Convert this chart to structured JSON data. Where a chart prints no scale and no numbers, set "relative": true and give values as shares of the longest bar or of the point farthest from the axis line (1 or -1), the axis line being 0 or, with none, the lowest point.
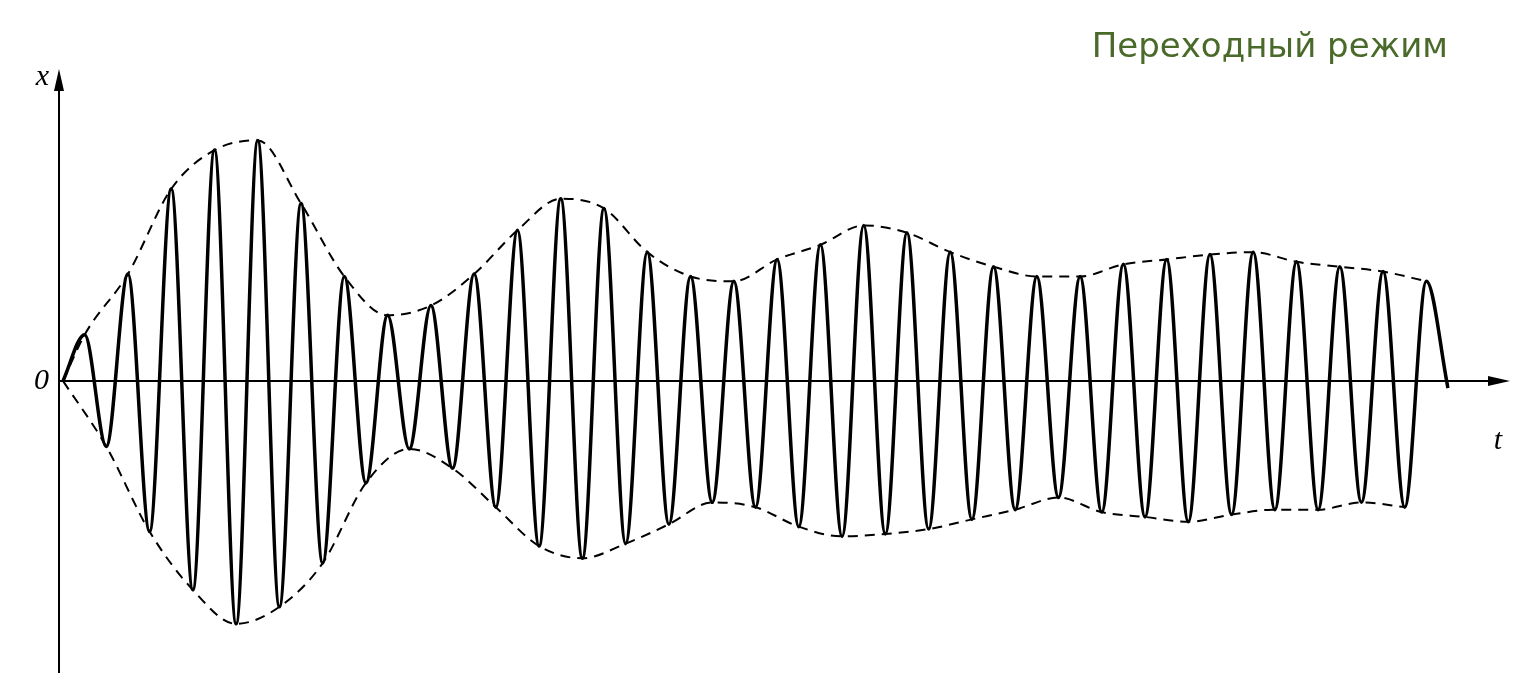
{
  "chart_data": {
    "type": "line",
    "title": "Переходный режим",
    "xlabel": "t",
    "ylabel": "x",
    "annotations": [
      "0"
    ],
    "relative": true,
    "legend": false,
    "grid": false,
    "marker": "none",
    "categories": [
      null,
      null,
      null,
      null,
      null,
      null,
      null,
      null,
      null,
      null,
      null,
      null,
      null,
      null,
      null,
      null,
      null,
      null,
      null,
      null,
      null,
      null,
      null,
      null,
      null,
      null,
      null,
      null,
      null,
      null,
      null,
      null,
      null,
      null,
      null,
      null,
      null,
      null,
      null,
      null,
      null,
      null,
      null,
      null,
      null,
      null,
      null,
      null,
      null,
      null,
      null,
      null,
      null,
      null,
      null,
      null,
      null,
      null,
      null,
      null,
      null,
      null,
      null,
      null,
      null
    ],
    "series": [
      {
        "color": "#000000",
        "line_style": "solid",
        "values": [
          0,
          0.19,
          -0.27,
          0.44,
          -0.62,
          0.79,
          -0.86,
          0.95,
          -1.0,
          0.99,
          -0.93,
          0.73,
          -0.75,
          0.43,
          -0.42,
          0.27,
          -0.28,
          0.31,
          -0.36,
          0.44,
          -0.52,
          0.62,
          -0.68,
          0.75,
          -0.73,
          0.71,
          -0.67,
          0.53,
          -0.59,
          0.43,
          -0.5,
          0.41,
          -0.52,
          0.5,
          -0.6,
          0.56,
          -0.64,
          0.64,
          -0.63,
          0.61,
          -0.61,
          0.53,
          -0.57,
          0.47,
          -0.53,
          0.43,
          -0.48,
          0.43,
          -0.54,
          0.48,
          -0.56,
          0.5,
          -0.58,
          0.52,
          -0.55,
          0.53,
          -0.53,
          0.49,
          -0.53,
          0.47,
          -0.5,
          0.45,
          -0.52,
          0.41,
          -0.03
        ]
      },
      {
        "color": "#000000",
        "line_style": "dashed",
        "values": [
          0,
          0.19,
          null,
          0.44,
          null,
          0.79,
          null,
          0.95,
          null,
          0.99,
          null,
          0.73,
          null,
          0.43,
          null,
          0.27,
          null,
          0.31,
          null,
          0.44,
          null,
          0.62,
          null,
          0.75,
          null,
          0.71,
          null,
          0.53,
          null,
          0.43,
          null,
          0.41,
          null,
          0.5,
          null,
          0.56,
          null,
          0.64,
          null,
          0.61,
          null,
          0.53,
          null,
          0.47,
          null,
          0.43,
          null,
          0.43,
          null,
          0.48,
          null,
          0.5,
          null,
          0.52,
          null,
          0.53,
          null,
          0.49,
          null,
          0.47,
          null,
          0.45,
          null,
          0.41,
          null
        ]
      },
      {
        "color": "#000000",
        "line_style": "dashed",
        "values": [
          0,
          null,
          -0.27,
          null,
          -0.62,
          null,
          -0.86,
          null,
          -1.0,
          null,
          -0.93,
          null,
          -0.75,
          null,
          -0.42,
          null,
          -0.28,
          null,
          -0.36,
          null,
          -0.52,
          null,
          -0.68,
          null,
          -0.73,
          null,
          -0.67,
          null,
          -0.59,
          null,
          -0.5,
          null,
          -0.52,
          null,
          -0.6,
          null,
          -0.64,
          null,
          -0.63,
          null,
          -0.61,
          null,
          -0.57,
          null,
          -0.53,
          null,
          -0.48,
          null,
          -0.54,
          null,
          -0.56,
          null,
          -0.58,
          null,
          -0.55,
          null,
          -0.53,
          null,
          -0.53,
          null,
          -0.5,
          null,
          -0.52,
          null,
          null
        ]
      }
    ]
  }
}
